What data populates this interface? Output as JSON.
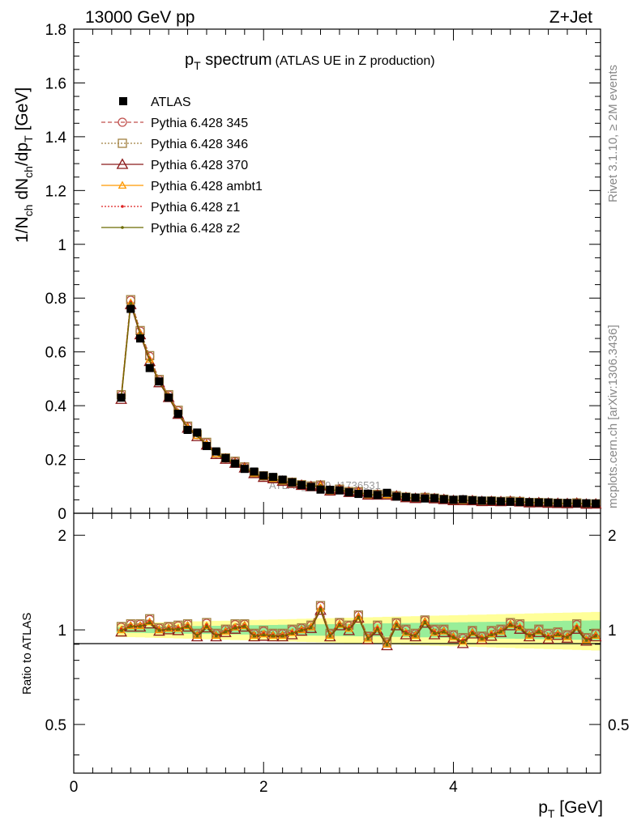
{
  "header": {
    "left": "13000 GeV pp",
    "right": "Z+Jet"
  },
  "side_labels": {
    "top": "Rivet 3.1.10, ≥ 2M events",
    "bottom": "mcplots.cern.ch [arXiv:1306.3436]"
  },
  "watermark": "ATLAS_2019_I1736531",
  "chart_data": {
    "type": "line",
    "title_main": "p",
    "title_main_sub": "T",
    "title_main_rest": " spectrum",
    "title_extra": "(ATLAS UE in Z production)",
    "xlabel": "p",
    "xlabel_sub": "T",
    "xlabel_rest": " [GeV]",
    "ylabel": "1/N",
    "ylabel_sub1": "ch",
    "ylabel_mid": " dN",
    "ylabel_sub2": "ch",
    "ylabel_mid2": "/dp",
    "ylabel_sub3": "T",
    "ylabel_rest": " [GeV]",
    "ratio_ylabel": "Ratio to ATLAS",
    "xlim": [
      0,
      5.55
    ],
    "ylim": [
      0,
      1.8
    ],
    "ratio_ylim": [
      0.35,
      2.35
    ],
    "x_ticks": [
      "0",
      "2",
      "4"
    ],
    "y_ticks": [
      "0",
      "0.2",
      "0.4",
      "0.6",
      "0.8",
      "1",
      "1.2",
      "1.4",
      "1.6",
      "1.8"
    ],
    "ratio_ticks": [
      "0.5",
      "1",
      "2"
    ],
    "legend_position": "top-left",
    "x": [
      0.5,
      0.6,
      0.7,
      0.8,
      0.9,
      1.0,
      1.1,
      1.2,
      1.3,
      1.4,
      1.5,
      1.6,
      1.7,
      1.8,
      1.9,
      2.0,
      2.1,
      2.2,
      2.3,
      2.4,
      2.5,
      2.6,
      2.7,
      2.8,
      2.9,
      3.0,
      3.1,
      3.2,
      3.3,
      3.4,
      3.5,
      3.6,
      3.7,
      3.8,
      3.9,
      4.0,
      4.1,
      4.2,
      4.3,
      4.4,
      4.5,
      4.6,
      4.7,
      4.8,
      4.9,
      5.0,
      5.1,
      5.2,
      5.3,
      5.4,
      5.5
    ],
    "data_series": {
      "name": "ATLAS",
      "values": [
        0.43,
        0.76,
        0.65,
        0.54,
        0.49,
        0.43,
        0.37,
        0.31,
        0.3,
        0.25,
        0.23,
        0.205,
        0.185,
        0.165,
        0.155,
        0.14,
        0.135,
        0.125,
        0.115,
        0.105,
        0.098,
        0.088,
        0.087,
        0.085,
        0.078,
        0.072,
        0.073,
        0.068,
        0.076,
        0.062,
        0.06,
        0.058,
        0.055,
        0.056,
        0.052,
        0.05,
        0.052,
        0.048,
        0.047,
        0.046,
        0.044,
        0.043,
        0.042,
        0.041,
        0.04,
        0.04,
        0.038,
        0.038,
        0.037,
        0.037,
        0.036
      ]
    },
    "series": [
      {
        "name": "Pythia 6.428 345",
        "color": "#c0504d",
        "line": "dashed",
        "marker": "circle"
      },
      {
        "name": "Pythia 6.428 346",
        "color": "#a08040",
        "line": "dotted",
        "marker": "square"
      },
      {
        "name": "Pythia 6.428 370",
        "color": "#8b1a1a",
        "line": "solid",
        "marker": "triangle"
      },
      {
        "name": "Pythia 6.428 ambt1",
        "color": "#ff9900",
        "line": "solid",
        "marker": "triangle-small"
      },
      {
        "name": "Pythia 6.428 z1",
        "color": "#dd2222",
        "line": "dotted",
        "marker": "dot"
      },
      {
        "name": "Pythia 6.428 z2",
        "color": "#6b6b00",
        "line": "solid",
        "marker": "dot"
      }
    ],
    "ratio_base": [
      1.0,
      1.03,
      1.03,
      1.06,
      1.0,
      1.01,
      1.01,
      1.03,
      0.96,
      1.03,
      0.96,
      0.99,
      1.02,
      1.03,
      0.96,
      0.97,
      0.96,
      0.96,
      0.98,
      1.0,
      1.02,
      1.17,
      0.96,
      1.04,
      1.01,
      1.1,
      0.94,
      1.01,
      0.9,
      1.04,
      0.98,
      0.96,
      1.06,
      0.98,
      0.99,
      0.95,
      0.92,
      0.98,
      0.94,
      0.97,
      0.99,
      1.04,
      1.02,
      0.96,
      0.99,
      0.95,
      0.97,
      0.95,
      1.02,
      0.93,
      0.96
    ],
    "ratio_offsets": [
      0.02,
      0.025,
      -0.015,
      0.0,
      0.005,
      -0.005
    ],
    "band_inner": 0.04,
    "band_outer_start": 0.05,
    "band_outer_end": 0.14
  }
}
